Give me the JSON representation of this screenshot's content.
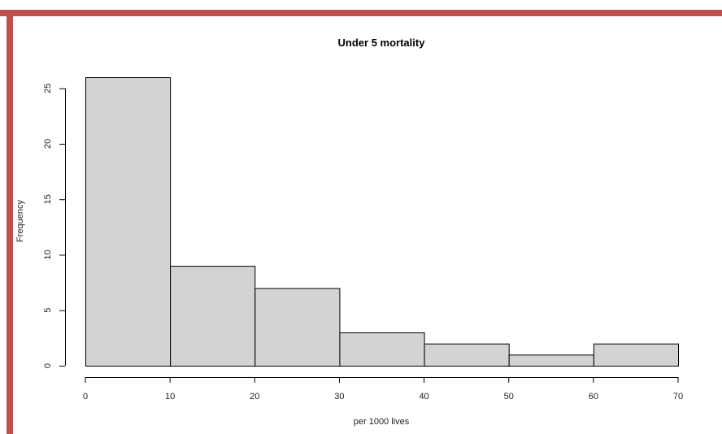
{
  "colors": {
    "frame": "#c0504d",
    "bar_fill": "#d3d3d3",
    "bar_stroke": "#000000"
  },
  "chart_data": {
    "type": "bar",
    "title": "Under 5 mortality",
    "xlabel": "per 1000 lives",
    "ylabel": "Frequency",
    "bins": [
      {
        "from": 0,
        "to": 10,
        "count": 26
      },
      {
        "from": 10,
        "to": 20,
        "count": 9
      },
      {
        "from": 20,
        "to": 30,
        "count": 7
      },
      {
        "from": 30,
        "to": 40,
        "count": 3
      },
      {
        "from": 40,
        "to": 50,
        "count": 2
      },
      {
        "from": 50,
        "to": 60,
        "count": 1
      },
      {
        "from": 60,
        "to": 70,
        "count": 2
      }
    ],
    "xlim": [
      0,
      70
    ],
    "ylim": [
      0,
      26
    ],
    "x_ticks": [
      "0",
      "10",
      "20",
      "30",
      "40",
      "50",
      "60",
      "70"
    ],
    "y_ticks": [
      "0",
      "5",
      "10",
      "15",
      "20",
      "25"
    ],
    "grid": false,
    "legend": "none"
  }
}
